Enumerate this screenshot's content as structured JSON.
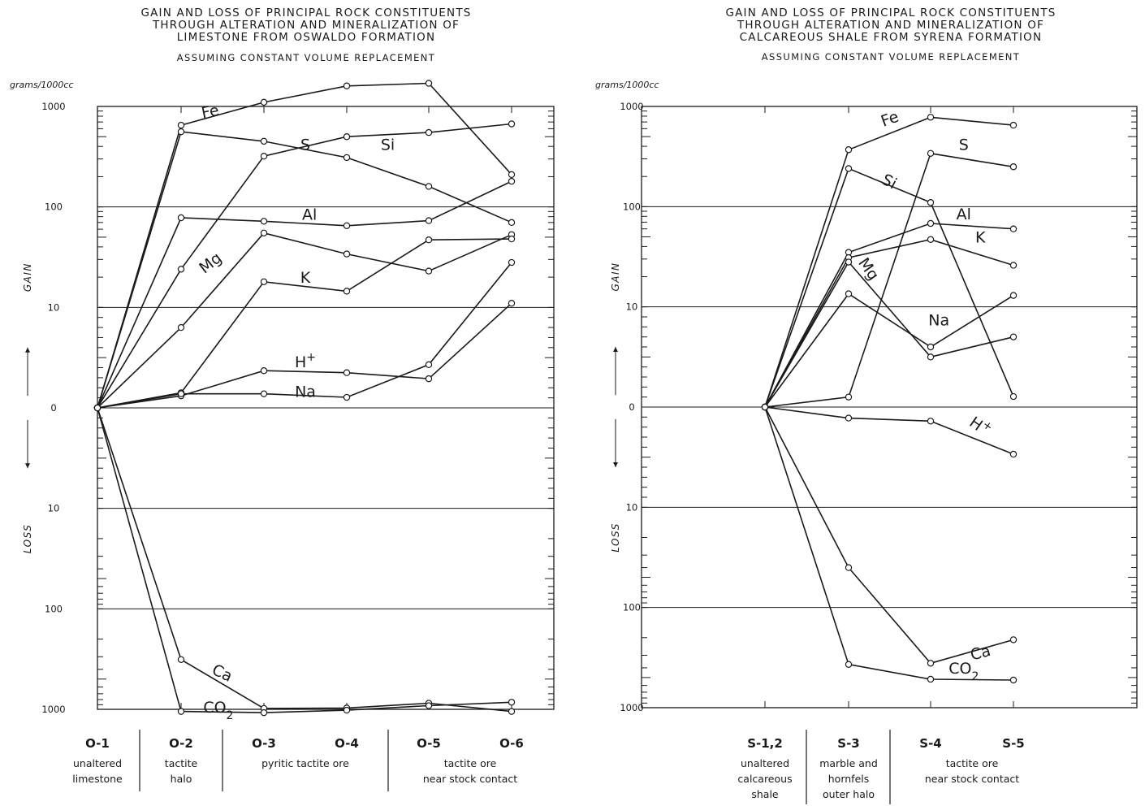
{
  "chart_data": [
    {
      "type": "line",
      "title_lines": [
        "GAIN AND LOSS OF PRINCIPAL ROCK CONSTITUENTS",
        "THROUGH ALTERATION AND MINERALIZATION OF",
        "LIMESTONE FROM OSWALDO FORMATION"
      ],
      "subtitle": "ASSUMING CONSTANT VOLUME REPLACEMENT",
      "unit_label": "grams/1000cc",
      "y_gain_label": "GAIN",
      "y_loss_label": "LOSS",
      "y_scale": "symmetric-log (gain above 0, loss below 0)",
      "y_ticks": [
        {
          "label": "1000",
          "value": 1000
        },
        {
          "label": "100",
          "value": 100
        },
        {
          "label": "10",
          "value": 10
        },
        {
          "label": "0",
          "value": 0
        },
        {
          "label": "10",
          "value": -10
        },
        {
          "label": "100",
          "value": -100
        },
        {
          "label": "1000",
          "value": -1000
        }
      ],
      "ylim": [
        -1000,
        1000
      ],
      "categories": [
        "O-1",
        "O-2",
        "O-3",
        "O-4",
        "O-5",
        "O-6"
      ],
      "category_groups": [
        {
          "lines": [
            "unaltered",
            "limestone"
          ],
          "from": 0,
          "to": 0
        },
        {
          "lines": [
            "tactite",
            "halo"
          ],
          "from": 1,
          "to": 1
        },
        {
          "lines": [
            "pyritic tactite ore"
          ],
          "from": 2,
          "to": 3
        },
        {
          "lines": [
            "tactite ore",
            "near stock contact"
          ],
          "from": 4,
          "to": 5
        }
      ],
      "series": [
        {
          "name": "Fe",
          "values": [
            0,
            650,
            1100,
            1600,
            1700,
            210
          ]
        },
        {
          "name": "S",
          "values": [
            0,
            560,
            450,
            310,
            160,
            70
          ]
        },
        {
          "name": "Si",
          "values": [
            0,
            24,
            320,
            500,
            550,
            670
          ]
        },
        {
          "name": "Al",
          "values": [
            0,
            78,
            72,
            65,
            73,
            180
          ]
        },
        {
          "name": "Mg",
          "values": [
            0,
            8,
            55,
            34,
            23,
            53
          ]
        },
        {
          "name": "K",
          "values": [
            0,
            1.5,
            18,
            14.5,
            47,
            48
          ]
        },
        {
          "name": "H+",
          "values": [
            0,
            1.2,
            3.7,
            3.5,
            2.9,
            11
          ]
        },
        {
          "name": "Na",
          "values": [
            0,
            1.4,
            1.4,
            1.05,
            4.3,
            28
          ]
        },
        {
          "name": "Ca",
          "values": [
            0,
            -320,
            -980,
            -970,
            -870,
            -1050
          ]
        },
        {
          "name": "CO2",
          "values": [
            0,
            -1050,
            -1080,
            -1020,
            -920,
            -850
          ]
        }
      ],
      "series_labels": [
        {
          "text": "Fe",
          "series": "Fe",
          "cat": 1.35,
          "value": 900,
          "rot": -12
        },
        {
          "text": "S",
          "series": "S",
          "cat": 2.5,
          "value": 420,
          "rot": 0
        },
        {
          "text": "Si",
          "series": "Si",
          "cat": 3.5,
          "value": 420,
          "rot": 0
        },
        {
          "text": "Al",
          "series": "Al",
          "cat": 2.55,
          "value": 85,
          "rot": 0
        },
        {
          "text": "Mg",
          "series": "Mg",
          "cat": 1.35,
          "value": 28,
          "rot": -38
        },
        {
          "text": "K",
          "series": "K",
          "cat": 2.5,
          "value": 20,
          "rot": 0
        },
        {
          "text": "H+",
          "series": "H+",
          "cat": 2.5,
          "value": 4.6,
          "rot": 0
        },
        {
          "text": "Na",
          "series": "Na",
          "cat": 2.5,
          "value": 1.65,
          "rot": 0
        },
        {
          "text": "Ca",
          "series": "Ca",
          "cat": 1.5,
          "value": -430,
          "rot": 25
        },
        {
          "text": "CO2",
          "series": "CO2",
          "cat": 1.45,
          "value": -950,
          "rot": 0
        }
      ],
      "grid": true,
      "legend": "none"
    },
    {
      "type": "line",
      "title_lines": [
        "GAIN AND LOSS OF PRINCIPAL ROCK CONSTITUENTS",
        "THROUGH ALTERATION AND MINERALIZATION OF",
        "CALCAREOUS SHALE FROM SYRENA FORMATION"
      ],
      "subtitle": "ASSUMING CONSTANT VOLUME REPLACEMENT",
      "unit_label": "grams/1000cc",
      "y_gain_label": "GAIN",
      "y_loss_label": "LOSS",
      "y_scale": "symmetric-log (gain above 0, loss below 0)",
      "y_ticks": [
        {
          "label": "1000",
          "value": 1000
        },
        {
          "label": "100",
          "value": 100
        },
        {
          "label": "10",
          "value": 10
        },
        {
          "label": "0",
          "value": 0
        },
        {
          "label": "10",
          "value": -10
        },
        {
          "label": "100",
          "value": -100
        },
        {
          "label": "1000",
          "value": -1000
        }
      ],
      "ylim": [
        -1000,
        1000
      ],
      "categories": [
        "S-1,2",
        "S-3",
        "S-4",
        "S-5"
      ],
      "category_groups": [
        {
          "lines": [
            "unaltered",
            "calcareous",
            "shale"
          ],
          "from": 0,
          "to": 0
        },
        {
          "lines": [
            "marble and",
            "hornfels",
            "outer halo"
          ],
          "from": 1,
          "to": 1
        },
        {
          "lines": [
            "tactite ore",
            "near stock contact"
          ],
          "from": 2,
          "to": 3
        }
      ],
      "series": [
        {
          "name": "Fe",
          "values": [
            0,
            370,
            780,
            650
          ]
        },
        {
          "name": "Si",
          "values": [
            0,
            240,
            110,
            1.05
          ]
        },
        {
          "name": "S",
          "values": [
            0,
            1.0,
            340,
            250
          ]
        },
        {
          "name": "Al",
          "values": [
            0,
            35,
            68,
            60
          ]
        },
        {
          "name": "K",
          "values": [
            0,
            31,
            47,
            26
          ]
        },
        {
          "name": "Mg",
          "values": [
            0,
            28,
            5.0,
            7
          ]
        },
        {
          "name": "Na",
          "values": [
            0,
            13.5,
            6,
            13
          ]
        },
        {
          "name": "H+",
          "values": [
            0,
            -1.1,
            -1.4,
            -4.7
          ]
        },
        {
          "name": "Ca",
          "values": [
            0,
            -40,
            -360,
            -210
          ]
        },
        {
          "name": "CO2",
          "values": [
            0,
            -370,
            -520,
            -530
          ]
        }
      ],
      "series_labels": [
        {
          "text": "Fe",
          "series": "Fe",
          "cat": 1.5,
          "value": 760,
          "rot": -20
        },
        {
          "text": "Si",
          "series": "Si",
          "cat": 1.5,
          "value": 180,
          "rot": 28
        },
        {
          "text": "S",
          "series": "S",
          "cat": 2.4,
          "value": 420,
          "rot": 0
        },
        {
          "text": "Al",
          "series": "Al",
          "cat": 2.4,
          "value": 85,
          "rot": 0
        },
        {
          "text": "K",
          "series": "K",
          "cat": 2.6,
          "value": 50,
          "rot": 0
        },
        {
          "text": "Mg",
          "series": "Mg",
          "cat": 1.25,
          "value": 24,
          "rot": 55
        },
        {
          "text": "Na",
          "series": "Na",
          "cat": 2.1,
          "value": 8.7,
          "rot": 0
        },
        {
          "text": "H+",
          "series": "H+",
          "cat": 2.6,
          "value": -1.9,
          "rot": 35
        },
        {
          "text": "Ca",
          "series": "Ca",
          "cat": 2.6,
          "value": -280,
          "rot": -15
        },
        {
          "text": "CO2",
          "series": "CO2",
          "cat": 2.4,
          "value": -400,
          "rot": 0
        }
      ],
      "grid": true,
      "legend": "none"
    }
  ]
}
